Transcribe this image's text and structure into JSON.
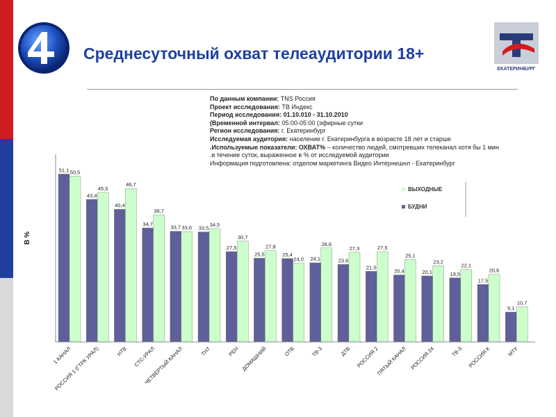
{
  "header": {
    "title": "Среднесуточный охват телеаудитории 18+",
    "logo_text": "ЕКАТЕРИНБУРГ"
  },
  "info": {
    "company_label": "По данным компании:",
    "company_value": "TNS Россия",
    "project_label": "Проект исследования:",
    "project_value": "ТВ Индекс",
    "period_label": "Период исследования: 01.10.010 - 31.10.2010",
    "interval_label": "(Временной интервал:",
    "interval_value": "05:00-05:00 (эфирные сутки",
    "region_label": "Регион исследования:",
    "region_value": "г. Екатеринбург",
    "audience_label": "Исследуемая аудитория:",
    "audience_value": "население г. Екатеринбурга в возрасте 18 лет и старше",
    "indicators_label": ".Используемые показатели: ОХВАТ%",
    "indicators_value": "– количество людей, смотревших телеканал хотя бы 1 мин",
    "indicators_cont": ".в течение суток, выраженное в % от исследуемой аудитории",
    "prepared": "Информация подготовлена: отделом маркетинга Видео Интернешнл - Екатеринбург"
  },
  "colors": {
    "weekday": "#5f5f9a",
    "weekend": "#ccffcc",
    "brand_blue": "#1f3f9f",
    "flag_red": "#d01c1f"
  },
  "chart_data": {
    "type": "bar",
    "ylabel": "В %",
    "categories": [
      "1 КАНАЛ",
      "РОССИЯ 1 (ГТРК УРАЛ)",
      "НТВ",
      "СТС-УРАЛ",
      "ЧЕТВЕРТЫЙ КАНАЛ",
      "ТНТ",
      "РЕН",
      "ДОМАШНИЙ",
      "ОТВ",
      "ТВ-3",
      "ДТВ",
      "РОССИЯ 2",
      "ПЯТЫЙ КАНАЛ",
      "РОССИЯ 24",
      "ТВ-3",
      "РОССИЯ К",
      "МТУ"
    ],
    "series": [
      {
        "name": "БУДНИ",
        "values": [
          51.1,
          43.4,
          40.4,
          34.7,
          33.7,
          33.5,
          27.5,
          25.5,
          25.4,
          24.1,
          23.6,
          21.5,
          20.4,
          20.1,
          19.5,
          17.5,
          9.1
        ]
      },
      {
        "name": "ВЫХОДНЫЕ",
        "values": [
          50.5,
          45.5,
          46.7,
          38.7,
          33.6,
          34.5,
          30.7,
          27.8,
          24.0,
          28.6,
          27.3,
          27.5,
          25.1,
          23.2,
          22.1,
          20.6,
          10.7
        ]
      }
    ],
    "value_labels": {
      "weekday": [
        "51,1",
        "43,4",
        "40,4",
        "34,7",
        "33,7",
        "33,5",
        "27,5",
        "25,5",
        "25,4",
        "24,1",
        "23,6",
        "21,5",
        "20,4",
        "20,1",
        "19,5",
        "17,5",
        "9,1"
      ],
      "weekend": [
        "50,5",
        "45,5",
        "46,7",
        "38,7",
        "33,6",
        "34,5",
        "30,7",
        "27,8",
        "24,0",
        "28,6",
        "27,3",
        "27,5",
        "25,1",
        "23,2",
        "22,1",
        "20,6",
        "10,7"
      ]
    },
    "ylim": [
      0,
      55
    ],
    "legend": "top-right",
    "grid": false
  }
}
